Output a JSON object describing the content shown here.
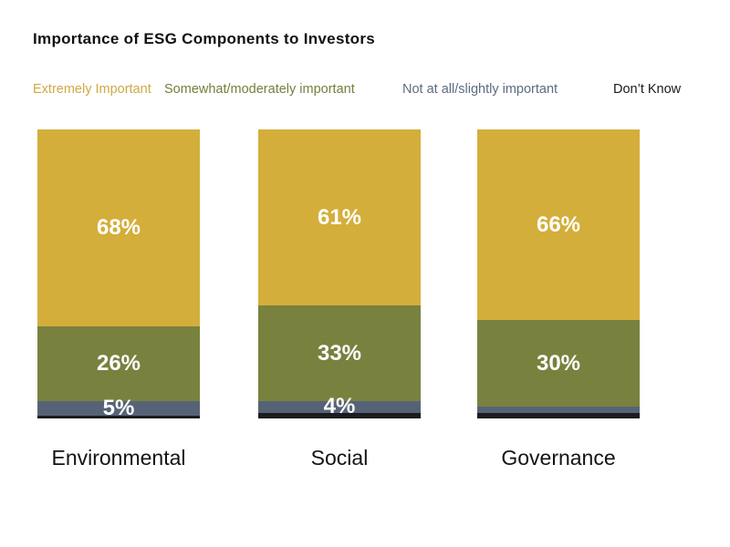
{
  "page": {
    "background": "#ffffff"
  },
  "chart_data": {
    "type": "bar",
    "stacked": true,
    "title": "Importance of ESG Components to Investors",
    "categories": [
      "Environmental",
      "Social",
      "Governance"
    ],
    "series": [
      {
        "name": "Extremely Important",
        "color": "#D4AE3B",
        "legend_text_color": "#CFA945",
        "values": [
          68,
          61,
          66
        ],
        "labels": [
          "68%",
          "61%",
          "66%"
        ]
      },
      {
        "name": "Somewhat/moderately important",
        "color": "#79813F",
        "legend_text_color": "#72803D",
        "values": [
          26,
          33,
          30
        ],
        "labels": [
          "26%",
          "33%",
          "30%"
        ]
      },
      {
        "name": "Not at all/slightly important",
        "color": "#566377",
        "legend_text_color": "#5C6C82",
        "values": [
          5,
          4,
          2
        ],
        "labels": [
          "5%",
          "4%",
          ""
        ]
      },
      {
        "name": "Don’t Know",
        "color": "#1B1B20",
        "legend_text_color": "#1A1A1A",
        "values": [
          1,
          2,
          2
        ],
        "labels": [
          "",
          "",
          ""
        ]
      }
    ],
    "ylim": [
      0,
      100
    ],
    "grid": false,
    "legend_position": "top",
    "value_label_color": "#ffffff",
    "xlabel": "",
    "ylabel": ""
  }
}
